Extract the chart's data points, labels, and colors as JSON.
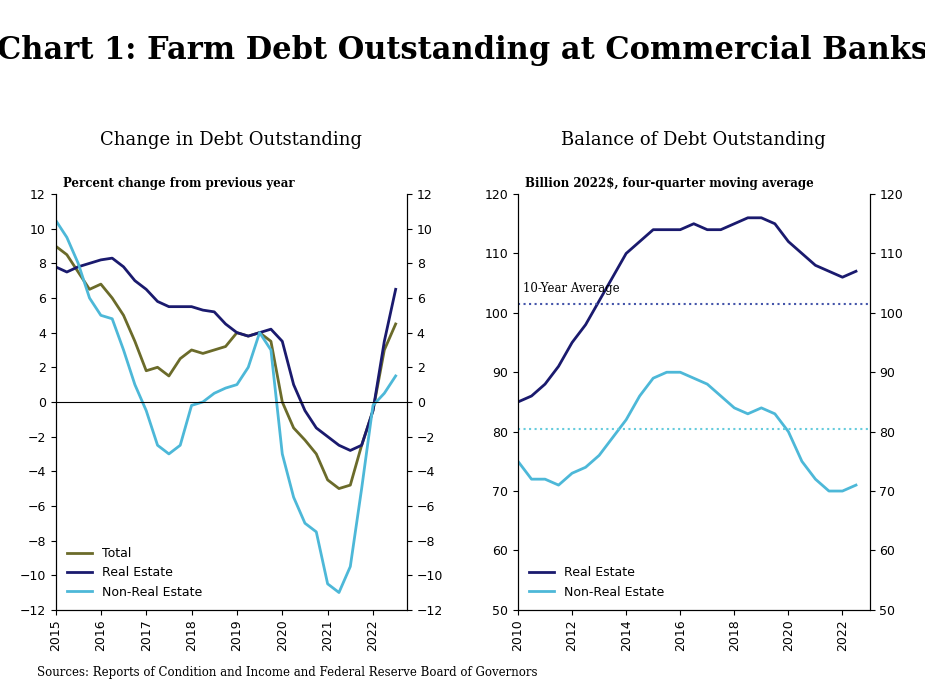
{
  "title": "Chart 1: Farm Debt Outstanding at Commercial Banks",
  "title_font": "serif",
  "title_size": 22,
  "sources": "Sources: Reports of Condition and Income and Federal Reserve Board of Governors",
  "left_title": "Change in Debt Outstanding",
  "left_ylabel": "Percent change from previous year",
  "left_ylim": [
    -12,
    12
  ],
  "left_yticks": [
    -12,
    -10,
    -8,
    -6,
    -4,
    -2,
    0,
    2,
    4,
    6,
    8,
    10,
    12
  ],
  "left_xticks": [
    2015,
    2016,
    2017,
    2018,
    2019,
    2020,
    2021,
    2022
  ],
  "right_title": "Balance of Debt Outstanding",
  "right_ylabel": "Billion 2022$, four-quarter moving average",
  "right_ylim": [
    50,
    120
  ],
  "right_yticks": [
    50,
    60,
    70,
    80,
    90,
    100,
    110,
    120
  ],
  "right_xticks": [
    2010,
    2012,
    2014,
    2016,
    2018,
    2020,
    2022
  ],
  "color_total": "#6b6b2a",
  "color_real_estate": "#1a1a6e",
  "color_non_real_estate": "#4db8d8",
  "color_re_avg": "#4455aa",
  "color_nre_avg": "#66ccdd",
  "left_x": [
    2015.0,
    2015.25,
    2015.5,
    2015.75,
    2016.0,
    2016.25,
    2016.5,
    2016.75,
    2017.0,
    2017.25,
    2017.5,
    2017.75,
    2018.0,
    2018.25,
    2018.5,
    2018.75,
    2019.0,
    2019.25,
    2019.5,
    2019.75,
    2020.0,
    2020.25,
    2020.5,
    2020.75,
    2021.0,
    2021.25,
    2021.5,
    2021.75,
    2022.0,
    2022.25,
    2022.5
  ],
  "total": [
    9.0,
    8.5,
    7.5,
    6.5,
    6.8,
    6.0,
    5.0,
    3.5,
    1.8,
    2.0,
    1.5,
    2.5,
    3.0,
    2.8,
    3.0,
    3.2,
    4.0,
    3.8,
    4.0,
    3.5,
    0.0,
    -1.5,
    -2.2,
    -3.0,
    -4.5,
    -5.0,
    -4.8,
    -2.5,
    -0.5,
    3.0,
    4.5
  ],
  "real_estate": [
    7.8,
    7.5,
    7.8,
    8.0,
    8.2,
    8.3,
    7.8,
    7.0,
    6.5,
    5.8,
    5.5,
    5.5,
    5.5,
    5.3,
    5.2,
    4.5,
    4.0,
    3.8,
    4.0,
    4.2,
    3.5,
    1.0,
    -0.5,
    -1.5,
    -2.0,
    -2.5,
    -2.8,
    -2.5,
    -0.5,
    3.5,
    6.5
  ],
  "non_real_estate": [
    10.5,
    9.5,
    8.0,
    6.0,
    5.0,
    4.8,
    3.0,
    1.0,
    -0.5,
    -2.5,
    -3.0,
    -2.5,
    -0.2,
    0.0,
    0.5,
    0.8,
    1.0,
    2.0,
    4.0,
    3.0,
    -3.0,
    -5.5,
    -7.0,
    -7.5,
    -10.5,
    -11.0,
    -9.5,
    -5.0,
    -0.2,
    0.5,
    1.5
  ],
  "right_x": [
    2010.0,
    2010.5,
    2011.0,
    2011.5,
    2012.0,
    2012.5,
    2013.0,
    2013.5,
    2014.0,
    2014.5,
    2015.0,
    2015.5,
    2016.0,
    2016.5,
    2017.0,
    2017.5,
    2018.0,
    2018.5,
    2019.0,
    2019.5,
    2020.0,
    2020.5,
    2021.0,
    2021.5,
    2022.0,
    2022.5
  ],
  "re_balance": [
    85,
    86,
    88,
    91,
    95,
    98,
    102,
    106,
    110,
    112,
    114,
    114,
    114,
    115,
    114,
    114,
    115,
    116,
    116,
    115,
    112,
    110,
    108,
    107,
    106,
    107
  ],
  "nre_balance": [
    75,
    72,
    72,
    71,
    73,
    74,
    76,
    79,
    82,
    86,
    89,
    90,
    90,
    89,
    88,
    86,
    84,
    83,
    84,
    83,
    80,
    75,
    72,
    70,
    70,
    71
  ],
  "re_10yr_avg": 101.5,
  "nre_10yr_avg": 80.5
}
